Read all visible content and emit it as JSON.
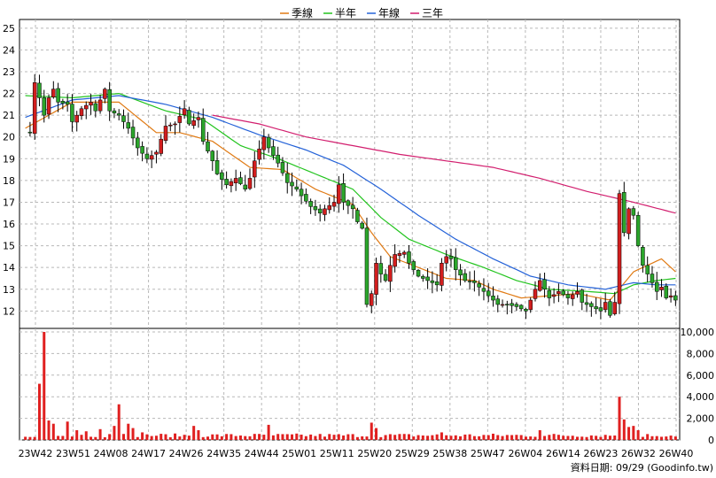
{
  "chart_data": [
    {
      "type": "candlestick",
      "legend": [
        {
          "name": "季線",
          "color": "#e07a14"
        },
        {
          "name": "半年",
          "color": "#22c41e"
        },
        {
          "name": "年線",
          "color": "#2462d8"
        },
        {
          "name": "三年",
          "color": "#d21e6e"
        }
      ],
      "legend_position": "top-center",
      "ylim": [
        11.2,
        25.4
      ],
      "yticks": [
        "12",
        "13",
        "14",
        "15",
        "16",
        "17",
        "18",
        "19",
        "20",
        "21",
        "22",
        "23",
        "24",
        "25"
      ],
      "grid": true,
      "up_color": "#d21e1e",
      "down_color": "#2ba52b",
      "anchors": [
        {
          "w": 0,
          "v": 20.3
        },
        {
          "w": 1,
          "v": 20.2
        },
        {
          "w": 2,
          "v": 22.5
        },
        {
          "w": 3,
          "v": 21.8
        },
        {
          "w": 4,
          "v": 21.0
        },
        {
          "w": 5,
          "v": 21.8
        },
        {
          "w": 6,
          "v": 22.2
        },
        {
          "w": 7,
          "v": 21.6
        },
        {
          "w": 9,
          "v": 21.5
        },
        {
          "w": 10,
          "v": 20.7
        },
        {
          "w": 12,
          "v": 21.3
        },
        {
          "w": 14,
          "v": 21.6
        },
        {
          "w": 15,
          "v": 21.2
        },
        {
          "w": 17,
          "v": 22.2
        },
        {
          "w": 18,
          "v": 21.2
        },
        {
          "w": 20,
          "v": 21.0
        },
        {
          "w": 22,
          "v": 20.4
        },
        {
          "w": 24,
          "v": 19.5
        },
        {
          "w": 26,
          "v": 19.0
        },
        {
          "w": 28,
          "v": 19.3
        },
        {
          "w": 30,
          "v": 20.5
        },
        {
          "w": 32,
          "v": 20.6
        },
        {
          "w": 34,
          "v": 21.3
        },
        {
          "w": 35,
          "v": 20.6
        },
        {
          "w": 37,
          "v": 20.9
        },
        {
          "w": 38,
          "v": 19.8
        },
        {
          "w": 40,
          "v": 18.9
        },
        {
          "w": 41,
          "v": 18.3
        },
        {
          "w": 43,
          "v": 17.8
        },
        {
          "w": 45,
          "v": 18.1
        },
        {
          "w": 47,
          "v": 17.6
        },
        {
          "w": 48,
          "v": 18.1
        },
        {
          "w": 49,
          "v": 18.9
        },
        {
          "w": 51,
          "v": 20.0
        },
        {
          "w": 52,
          "v": 19.5
        },
        {
          "w": 54,
          "v": 18.8
        },
        {
          "w": 56,
          "v": 17.9
        },
        {
          "w": 58,
          "v": 17.6
        },
        {
          "w": 59,
          "v": 17.3
        },
        {
          "w": 61,
          "v": 16.8
        },
        {
          "w": 63,
          "v": 16.5
        },
        {
          "w": 64,
          "v": 16.7
        },
        {
          "w": 66,
          "v": 17.0
        },
        {
          "w": 67,
          "v": 17.8
        },
        {
          "w": 68,
          "v": 17.0
        },
        {
          "w": 70,
          "v": 16.7
        },
        {
          "w": 71,
          "v": 16.1
        },
        {
          "w": 72,
          "v": 15.8
        },
        {
          "w": 73,
          "v": 12.3
        },
        {
          "w": 74,
          "v": 12.8
        },
        {
          "w": 75,
          "v": 14.2
        },
        {
          "w": 76,
          "v": 13.7
        },
        {
          "w": 77,
          "v": 13.4
        },
        {
          "w": 78,
          "v": 14.1
        },
        {
          "w": 79,
          "v": 14.6
        },
        {
          "w": 81,
          "v": 14.7
        },
        {
          "w": 82,
          "v": 14.2
        },
        {
          "w": 84,
          "v": 13.6
        },
        {
          "w": 86,
          "v": 13.4
        },
        {
          "w": 88,
          "v": 13.2
        },
        {
          "w": 89,
          "v": 14.2
        },
        {
          "w": 90,
          "v": 14.5
        },
        {
          "w": 91,
          "v": 14.4
        },
        {
          "w": 92,
          "v": 13.9
        },
        {
          "w": 94,
          "v": 13.4
        },
        {
          "w": 96,
          "v": 13.3
        },
        {
          "w": 98,
          "v": 12.9
        },
        {
          "w": 100,
          "v": 12.5
        },
        {
          "w": 101,
          "v": 12.3
        },
        {
          "w": 103,
          "v": 12.3
        },
        {
          "w": 105,
          "v": 12.2
        },
        {
          "w": 107,
          "v": 12.0
        },
        {
          "w": 108,
          "v": 12.5
        },
        {
          "w": 109,
          "v": 13.0
        },
        {
          "w": 110,
          "v": 13.4
        },
        {
          "w": 111,
          "v": 13.0
        },
        {
          "w": 112,
          "v": 12.6
        },
        {
          "w": 114,
          "v": 12.9
        },
        {
          "w": 116,
          "v": 12.6
        },
        {
          "w": 118,
          "v": 12.9
        },
        {
          "w": 119,
          "v": 12.4
        },
        {
          "w": 121,
          "v": 12.2
        },
        {
          "w": 123,
          "v": 12.0
        },
        {
          "w": 124,
          "v": 12.4
        },
        {
          "w": 125,
          "v": 11.8
        },
        {
          "w": 126,
          "v": 12.4
        },
        {
          "w": 127,
          "v": 17.4
        },
        {
          "w": 128,
          "v": 15.6
        },
        {
          "w": 129,
          "v": 16.7
        },
        {
          "w": 130,
          "v": 16.4
        },
        {
          "w": 131,
          "v": 15.0
        },
        {
          "w": 132,
          "v": 14.1
        },
        {
          "w": 133,
          "v": 13.7
        },
        {
          "w": 134,
          "v": 13.3
        },
        {
          "w": 135,
          "v": 12.9
        },
        {
          "w": 136,
          "v": 13.1
        },
        {
          "w": 137,
          "v": 12.6
        },
        {
          "w": 138,
          "v": 12.7
        },
        {
          "w": 139,
          "v": 12.5
        }
      ],
      "ma": {
        "季線": [
          {
            "w": 0,
            "v": 20.4
          },
          {
            "w": 10,
            "v": 21.6
          },
          {
            "w": 20,
            "v": 21.6
          },
          {
            "w": 28,
            "v": 20.2
          },
          {
            "w": 33,
            "v": 20.2
          },
          {
            "w": 40,
            "v": 19.8
          },
          {
            "w": 48,
            "v": 18.6
          },
          {
            "w": 55,
            "v": 18.5
          },
          {
            "w": 62,
            "v": 17.6
          },
          {
            "w": 70,
            "v": 16.9
          },
          {
            "w": 74,
            "v": 15.6
          },
          {
            "w": 78,
            "v": 14.5
          },
          {
            "w": 84,
            "v": 14.0
          },
          {
            "w": 90,
            "v": 13.5
          },
          {
            "w": 96,
            "v": 13.4
          },
          {
            "w": 100,
            "v": 13.0
          },
          {
            "w": 106,
            "v": 12.6
          },
          {
            "w": 112,
            "v": 12.7
          },
          {
            "w": 118,
            "v": 12.8
          },
          {
            "w": 125,
            "v": 12.5
          },
          {
            "w": 130,
            "v": 13.8
          },
          {
            "w": 136,
            "v": 14.4
          },
          {
            "w": 139,
            "v": 13.8
          }
        ],
        "半年": [
          {
            "w": 0,
            "v": 21.9
          },
          {
            "w": 10,
            "v": 21.8
          },
          {
            "w": 20,
            "v": 22.0
          },
          {
            "w": 30,
            "v": 21.2
          },
          {
            "w": 38,
            "v": 20.8
          },
          {
            "w": 46,
            "v": 19.6
          },
          {
            "w": 54,
            "v": 19.0
          },
          {
            "w": 62,
            "v": 18.3
          },
          {
            "w": 70,
            "v": 17.6
          },
          {
            "w": 76,
            "v": 16.3
          },
          {
            "w": 82,
            "v": 15.3
          },
          {
            "w": 90,
            "v": 14.6
          },
          {
            "w": 98,
            "v": 14.0
          },
          {
            "w": 105,
            "v": 13.4
          },
          {
            "w": 112,
            "v": 13.0
          },
          {
            "w": 120,
            "v": 12.9
          },
          {
            "w": 126,
            "v": 12.8
          },
          {
            "w": 130,
            "v": 13.2
          },
          {
            "w": 135,
            "v": 13.4
          },
          {
            "w": 139,
            "v": 13.5
          }
        ],
        "年線": [
          {
            "w": 0,
            "v": 20.9
          },
          {
            "w": 10,
            "v": 21.7
          },
          {
            "w": 20,
            "v": 21.9
          },
          {
            "w": 30,
            "v": 21.5
          },
          {
            "w": 40,
            "v": 20.9
          },
          {
            "w": 50,
            "v": 20.1
          },
          {
            "w": 60,
            "v": 19.4
          },
          {
            "w": 68,
            "v": 18.7
          },
          {
            "w": 76,
            "v": 17.6
          },
          {
            "w": 84,
            "v": 16.4
          },
          {
            "w": 92,
            "v": 15.3
          },
          {
            "w": 100,
            "v": 14.4
          },
          {
            "w": 108,
            "v": 13.6
          },
          {
            "w": 116,
            "v": 13.2
          },
          {
            "w": 124,
            "v": 13.0
          },
          {
            "w": 130,
            "v": 13.3
          },
          {
            "w": 135,
            "v": 13.2
          },
          {
            "w": 139,
            "v": 13.2
          }
        ],
        "三年": [
          {
            "w": 40,
            "v": 21.0
          },
          {
            "w": 50,
            "v": 20.6
          },
          {
            "w": 60,
            "v": 20.0
          },
          {
            "w": 70,
            "v": 19.6
          },
          {
            "w": 80,
            "v": 19.2
          },
          {
            "w": 90,
            "v": 18.9
          },
          {
            "w": 100,
            "v": 18.6
          },
          {
            "w": 110,
            "v": 18.1
          },
          {
            "w": 120,
            "v": 17.5
          },
          {
            "w": 130,
            "v": 17.0
          },
          {
            "w": 139,
            "v": 16.5
          }
        ]
      }
    },
    {
      "type": "bar",
      "ylim": [
        0,
        10000
      ],
      "yticks": [
        "0",
        "2,000",
        "4,000",
        "6,000",
        "8,000",
        "10,000"
      ],
      "bar_color": "#e02020",
      "peaks": [
        {
          "w": 3,
          "v": 5200
        },
        {
          "w": 4,
          "v": 10000
        },
        {
          "w": 5,
          "v": 1800
        },
        {
          "w": 6,
          "v": 1500
        },
        {
          "w": 9,
          "v": 1700
        },
        {
          "w": 11,
          "v": 900
        },
        {
          "w": 13,
          "v": 800
        },
        {
          "w": 16,
          "v": 1000
        },
        {
          "w": 19,
          "v": 1300
        },
        {
          "w": 20,
          "v": 3300
        },
        {
          "w": 22,
          "v": 1500
        },
        {
          "w": 23,
          "v": 1100
        },
        {
          "w": 25,
          "v": 700
        },
        {
          "w": 36,
          "v": 1300
        },
        {
          "w": 37,
          "v": 900
        },
        {
          "w": 52,
          "v": 1400
        },
        {
          "w": 74,
          "v": 1600
        },
        {
          "w": 75,
          "v": 1100
        },
        {
          "w": 89,
          "v": 700
        },
        {
          "w": 110,
          "v": 900
        },
        {
          "w": 127,
          "v": 4000
        },
        {
          "w": 128,
          "v": 1900
        },
        {
          "w": 129,
          "v": 1200
        },
        {
          "w": 130,
          "v": 1300
        },
        {
          "w": 131,
          "v": 900
        }
      ],
      "base": 250
    }
  ],
  "x_labels": [
    "23W42",
    "23W51",
    "24W08",
    "24W17",
    "24W26",
    "24W35",
    "24W44",
    "25W01",
    "25W11",
    "25W20",
    "25W29",
    "25W38",
    "25W47",
    "26W04",
    "26W14",
    "26W23",
    "26W32",
    "26W40"
  ],
  "source_text": "資料日期: 09/29 (Goodinfo.tw)"
}
